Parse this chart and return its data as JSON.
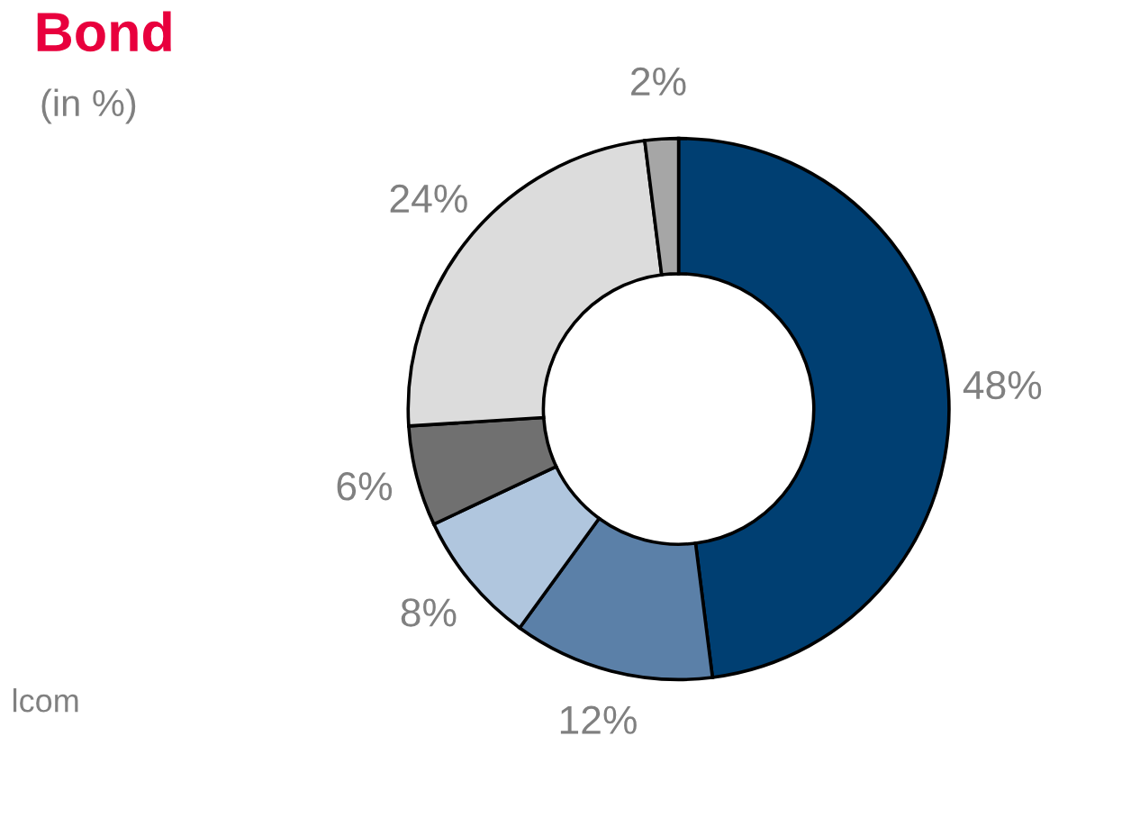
{
  "chart_data": {
    "type": "donut",
    "title": "Bond",
    "subtitle": "(in %)",
    "categories": [
      null,
      null,
      null,
      null,
      null,
      null
    ],
    "values": [
      48,
      12,
      8,
      6,
      24,
      2
    ],
    "colors": [
      "#003f72",
      "#5b80a8",
      "#b0c6de",
      "#707070",
      "#dcdcdc",
      "#a6a6a6"
    ],
    "value_labels": [
      "48%",
      "12%",
      "8%",
      "6%",
      "24%",
      "2%"
    ],
    "annotations": [
      "lcom"
    ]
  }
}
